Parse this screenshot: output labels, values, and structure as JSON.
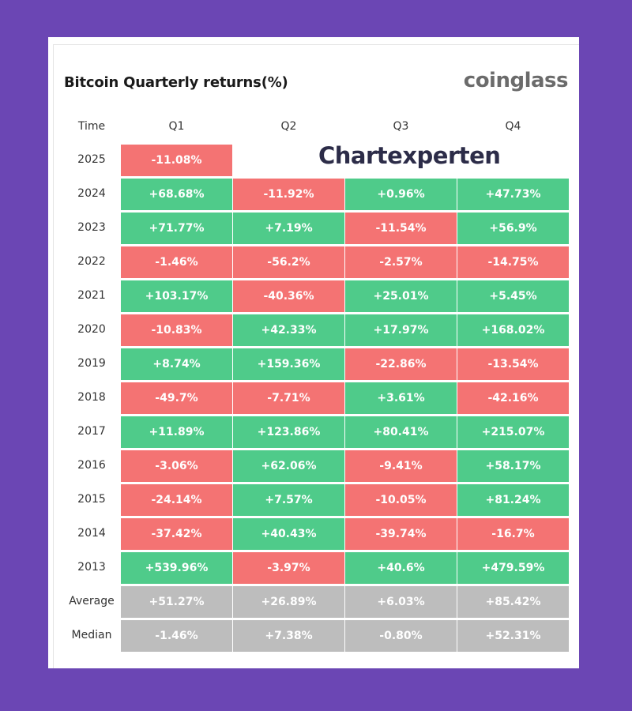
{
  "title": "Bitcoin Quarterly returns(%)",
  "brand": "coinglass",
  "watermark": "Chartexperten",
  "colors": {
    "background": "#6b46b4",
    "positive": "#4fcb8a",
    "negative": "#f47373",
    "summary": "#bdbdbd"
  },
  "chart_data": {
    "type": "table",
    "title": "Bitcoin Quarterly returns(%)",
    "corner_label": "Time",
    "columns": [
      "Q1",
      "Q2",
      "Q3",
      "Q4"
    ],
    "rows": [
      {
        "label": "2025",
        "values": [
          "-11.08%",
          null,
          null,
          null
        ]
      },
      {
        "label": "2024",
        "values": [
          "+68.68%",
          "-11.92%",
          "+0.96%",
          "+47.73%"
        ]
      },
      {
        "label": "2023",
        "values": [
          "+71.77%",
          "+7.19%",
          "-11.54%",
          "+56.9%"
        ]
      },
      {
        "label": "2022",
        "values": [
          "-1.46%",
          "-56.2%",
          "-2.57%",
          "-14.75%"
        ]
      },
      {
        "label": "2021",
        "values": [
          "+103.17%",
          "-40.36%",
          "+25.01%",
          "+5.45%"
        ]
      },
      {
        "label": "2020",
        "values": [
          "-10.83%",
          "+42.33%",
          "+17.97%",
          "+168.02%"
        ]
      },
      {
        "label": "2019",
        "values": [
          "+8.74%",
          "+159.36%",
          "-22.86%",
          "-13.54%"
        ]
      },
      {
        "label": "2018",
        "values": [
          "-49.7%",
          "-7.71%",
          "+3.61%",
          "-42.16%"
        ]
      },
      {
        "label": "2017",
        "values": [
          "+11.89%",
          "+123.86%",
          "+80.41%",
          "+215.07%"
        ]
      },
      {
        "label": "2016",
        "values": [
          "-3.06%",
          "+62.06%",
          "-9.41%",
          "+58.17%"
        ]
      },
      {
        "label": "2015",
        "values": [
          "-24.14%",
          "+7.57%",
          "-10.05%",
          "+81.24%"
        ]
      },
      {
        "label": "2014",
        "values": [
          "-37.42%",
          "+40.43%",
          "-39.74%",
          "-16.7%"
        ]
      },
      {
        "label": "2013",
        "values": [
          "+539.96%",
          "-3.97%",
          "+40.6%",
          "+479.59%"
        ]
      },
      {
        "label": "Average",
        "summary": true,
        "values": [
          "+51.27%",
          "+26.89%",
          "+6.03%",
          "+85.42%"
        ]
      },
      {
        "label": "Median",
        "summary": true,
        "values": [
          "-1.46%",
          "+7.38%",
          "-0.80%",
          "+52.31%"
        ]
      }
    ]
  }
}
